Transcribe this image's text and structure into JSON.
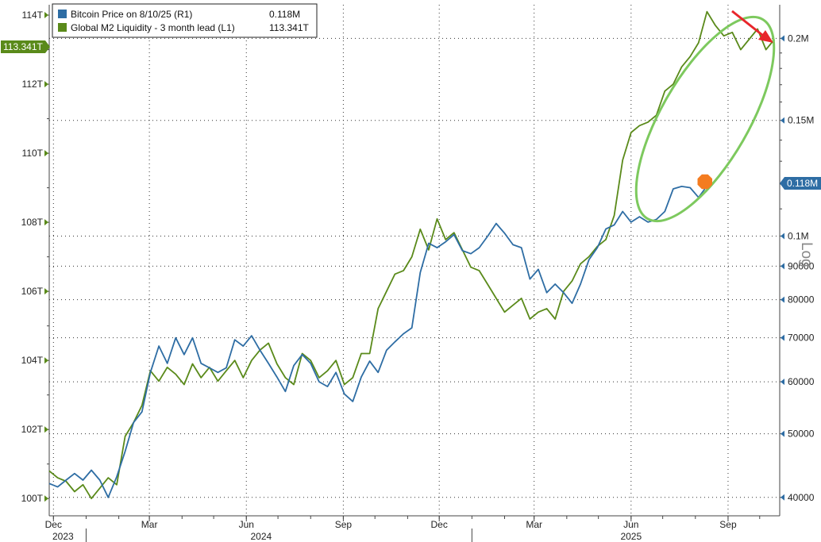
{
  "chart_data": {
    "type": "line",
    "title": "",
    "xlabel": "",
    "x_tick_labels": [
      "Dec",
      "Mar",
      "Jun",
      "Sep",
      "Dec",
      "Mar",
      "Jun",
      "Sep"
    ],
    "x_tick_dates": [
      "2023-12-01",
      "2024-03-01",
      "2024-06-01",
      "2024-09-01",
      "2024-12-01",
      "2025-03-01",
      "2025-06-01",
      "2025-09-01"
    ],
    "year_labels": [
      "2023",
      "2024",
      "2025"
    ],
    "x_range": [
      "2023-11-27",
      "2025-10-20"
    ],
    "left_axis": {
      "ticks": [
        100,
        102,
        104,
        106,
        108,
        110,
        112,
        114
      ],
      "tick_labels": [
        "100T",
        "102T",
        "104T",
        "106T",
        "108T",
        "110T",
        "112T",
        "114T"
      ],
      "range": [
        99.5,
        114.3
      ],
      "current_value_label": "113.341T"
    },
    "right_axis": {
      "scale": "log",
      "scale_label": "Log",
      "ticks": [
        40000,
        50000,
        60000,
        70000,
        80000,
        90000,
        100000,
        150000,
        200000
      ],
      "tick_labels": [
        "40000",
        "50000",
        "60000",
        "70000",
        "80000",
        "90000",
        "0.1M",
        "0.15M",
        "0.2M"
      ],
      "range": [
        37500,
        225000
      ],
      "current_value_label": "0.118M"
    },
    "grid": true,
    "legend_position": "top-left",
    "series": [
      {
        "name": "Bitcoin Price on 8/10/25 (R1)",
        "legend_value": "0.118M",
        "color": "#2e6da4",
        "axis": "right",
        "x": [
          "2023-11-27",
          "2023-12-05",
          "2023-12-13",
          "2023-12-21",
          "2023-12-29",
          "2024-01-06",
          "2024-01-14",
          "2024-01-22",
          "2024-01-30",
          "2024-02-07",
          "2024-02-15",
          "2024-02-23",
          "2024-03-02",
          "2024-03-10",
          "2024-03-18",
          "2024-03-26",
          "2024-04-03",
          "2024-04-11",
          "2024-04-19",
          "2024-04-27",
          "2024-05-05",
          "2024-05-13",
          "2024-05-21",
          "2024-05-29",
          "2024-06-06",
          "2024-06-14",
          "2024-06-22",
          "2024-06-30",
          "2024-07-08",
          "2024-07-16",
          "2024-07-24",
          "2024-08-01",
          "2024-08-09",
          "2024-08-17",
          "2024-08-25",
          "2024-09-02",
          "2024-09-10",
          "2024-09-18",
          "2024-09-26",
          "2024-10-04",
          "2024-10-12",
          "2024-10-20",
          "2024-10-28",
          "2024-11-05",
          "2024-11-13",
          "2024-11-21",
          "2024-11-29",
          "2024-12-07",
          "2024-12-15",
          "2024-12-23",
          "2024-12-31",
          "2025-01-08",
          "2025-01-16",
          "2025-01-24",
          "2025-02-01",
          "2025-02-09",
          "2025-02-17",
          "2025-02-25",
          "2025-03-05",
          "2025-03-13",
          "2025-03-21",
          "2025-03-29",
          "2025-04-06",
          "2025-04-14",
          "2025-04-22",
          "2025-04-30",
          "2025-05-08",
          "2025-05-16",
          "2025-05-24",
          "2025-06-01",
          "2025-06-09",
          "2025-06-17",
          "2025-06-25",
          "2025-07-03",
          "2025-07-11",
          "2025-07-19",
          "2025-07-27",
          "2025-08-04",
          "2025-08-10"
        ],
        "values": [
          42000,
          41500,
          42500,
          43500,
          42500,
          44000,
          42500,
          40000,
          43000,
          47000,
          52000,
          54000,
          62000,
          68000,
          64000,
          70000,
          66000,
          70000,
          64000,
          63000,
          62000,
          63000,
          69500,
          68000,
          70500,
          67000,
          64000,
          61000,
          58000,
          63500,
          66000,
          64000,
          60000,
          59000,
          62000,
          57500,
          56000,
          61000,
          64500,
          62000,
          67000,
          69000,
          71000,
          72500,
          88000,
          97500,
          96000,
          98000,
          100500,
          95000,
          94000,
          96000,
          100000,
          104500,
          101000,
          97000,
          96000,
          86000,
          89000,
          82000,
          84500,
          82000,
          79000,
          84500,
          92000,
          96000,
          102500,
          104000,
          109000,
          105000,
          107000,
          105000,
          106000,
          109000,
          118000,
          119000,
          118500,
          114500,
          118000
        ]
      },
      {
        "name": "Global M2 Liquidity - 3 month lead (L1)",
        "legend_value": "113.341T",
        "color": "#5a8a1a",
        "axis": "left",
        "x": [
          "2023-11-27",
          "2023-12-05",
          "2023-12-13",
          "2023-12-21",
          "2023-12-29",
          "2024-01-06",
          "2024-01-14",
          "2024-01-22",
          "2024-01-30",
          "2024-02-07",
          "2024-02-15",
          "2024-02-23",
          "2024-03-02",
          "2024-03-10",
          "2024-03-18",
          "2024-03-26",
          "2024-04-03",
          "2024-04-11",
          "2024-04-19",
          "2024-04-27",
          "2024-05-05",
          "2024-05-13",
          "2024-05-21",
          "2024-05-29",
          "2024-06-06",
          "2024-06-14",
          "2024-06-22",
          "2024-06-30",
          "2024-07-08",
          "2024-07-16",
          "2024-07-24",
          "2024-08-01",
          "2024-08-09",
          "2024-08-17",
          "2024-08-25",
          "2024-09-02",
          "2024-09-10",
          "2024-09-18",
          "2024-09-26",
          "2024-10-04",
          "2024-10-12",
          "2024-10-20",
          "2024-10-28",
          "2024-11-05",
          "2024-11-13",
          "2024-11-21",
          "2024-11-29",
          "2024-12-07",
          "2024-12-15",
          "2024-12-23",
          "2024-12-31",
          "2025-01-08",
          "2025-01-16",
          "2025-01-24",
          "2025-02-01",
          "2025-02-09",
          "2025-02-17",
          "2025-02-25",
          "2025-03-05",
          "2025-03-13",
          "2025-03-21",
          "2025-03-29",
          "2025-04-06",
          "2025-04-14",
          "2025-04-22",
          "2025-04-30",
          "2025-05-08",
          "2025-05-16",
          "2025-05-24",
          "2025-06-01",
          "2025-06-09",
          "2025-06-17",
          "2025-06-25",
          "2025-07-03",
          "2025-07-11",
          "2025-07-19",
          "2025-07-27",
          "2025-08-04",
          "2025-08-12",
          "2025-08-20",
          "2025-08-28",
          "2025-09-05",
          "2025-09-13",
          "2025-09-21",
          "2025-09-29",
          "2025-10-07",
          "2025-10-15"
        ],
        "values": [
          100.8,
          100.6,
          100.5,
          100.2,
          100.4,
          100.0,
          100.3,
          100.6,
          100.4,
          101.8,
          102.2,
          102.7,
          103.7,
          103.4,
          103.8,
          103.6,
          103.3,
          103.9,
          103.5,
          103.8,
          103.4,
          103.7,
          104.0,
          103.5,
          104.0,
          104.3,
          104.5,
          103.9,
          103.5,
          103.3,
          104.2,
          104.0,
          103.5,
          103.7,
          104.0,
          103.3,
          103.5,
          104.2,
          104.2,
          105.5,
          106.0,
          106.5,
          106.6,
          107.0,
          107.8,
          107.2,
          108.1,
          107.5,
          107.7,
          107.2,
          106.7,
          106.6,
          106.2,
          105.8,
          105.4,
          105.6,
          105.8,
          105.2,
          105.4,
          105.5,
          105.2,
          106.0,
          106.3,
          106.8,
          107.0,
          107.3,
          107.5,
          108.2,
          109.8,
          110.6,
          110.8,
          110.9,
          111.1,
          111.8,
          112.0,
          112.5,
          112.8,
          113.2,
          114.1,
          113.7,
          113.4,
          113.5,
          113.0,
          113.3,
          113.6,
          113.0,
          113.3
        ]
      }
    ],
    "annotations": [
      {
        "type": "ellipse",
        "description": "green ellipse around the 2025 liquidity surge"
      },
      {
        "type": "arrow",
        "color": "#e8262b",
        "direction": "down-right"
      },
      {
        "type": "marker",
        "color": "#f47c20",
        "date": "2025-08-10",
        "value": 121000
      }
    ]
  }
}
